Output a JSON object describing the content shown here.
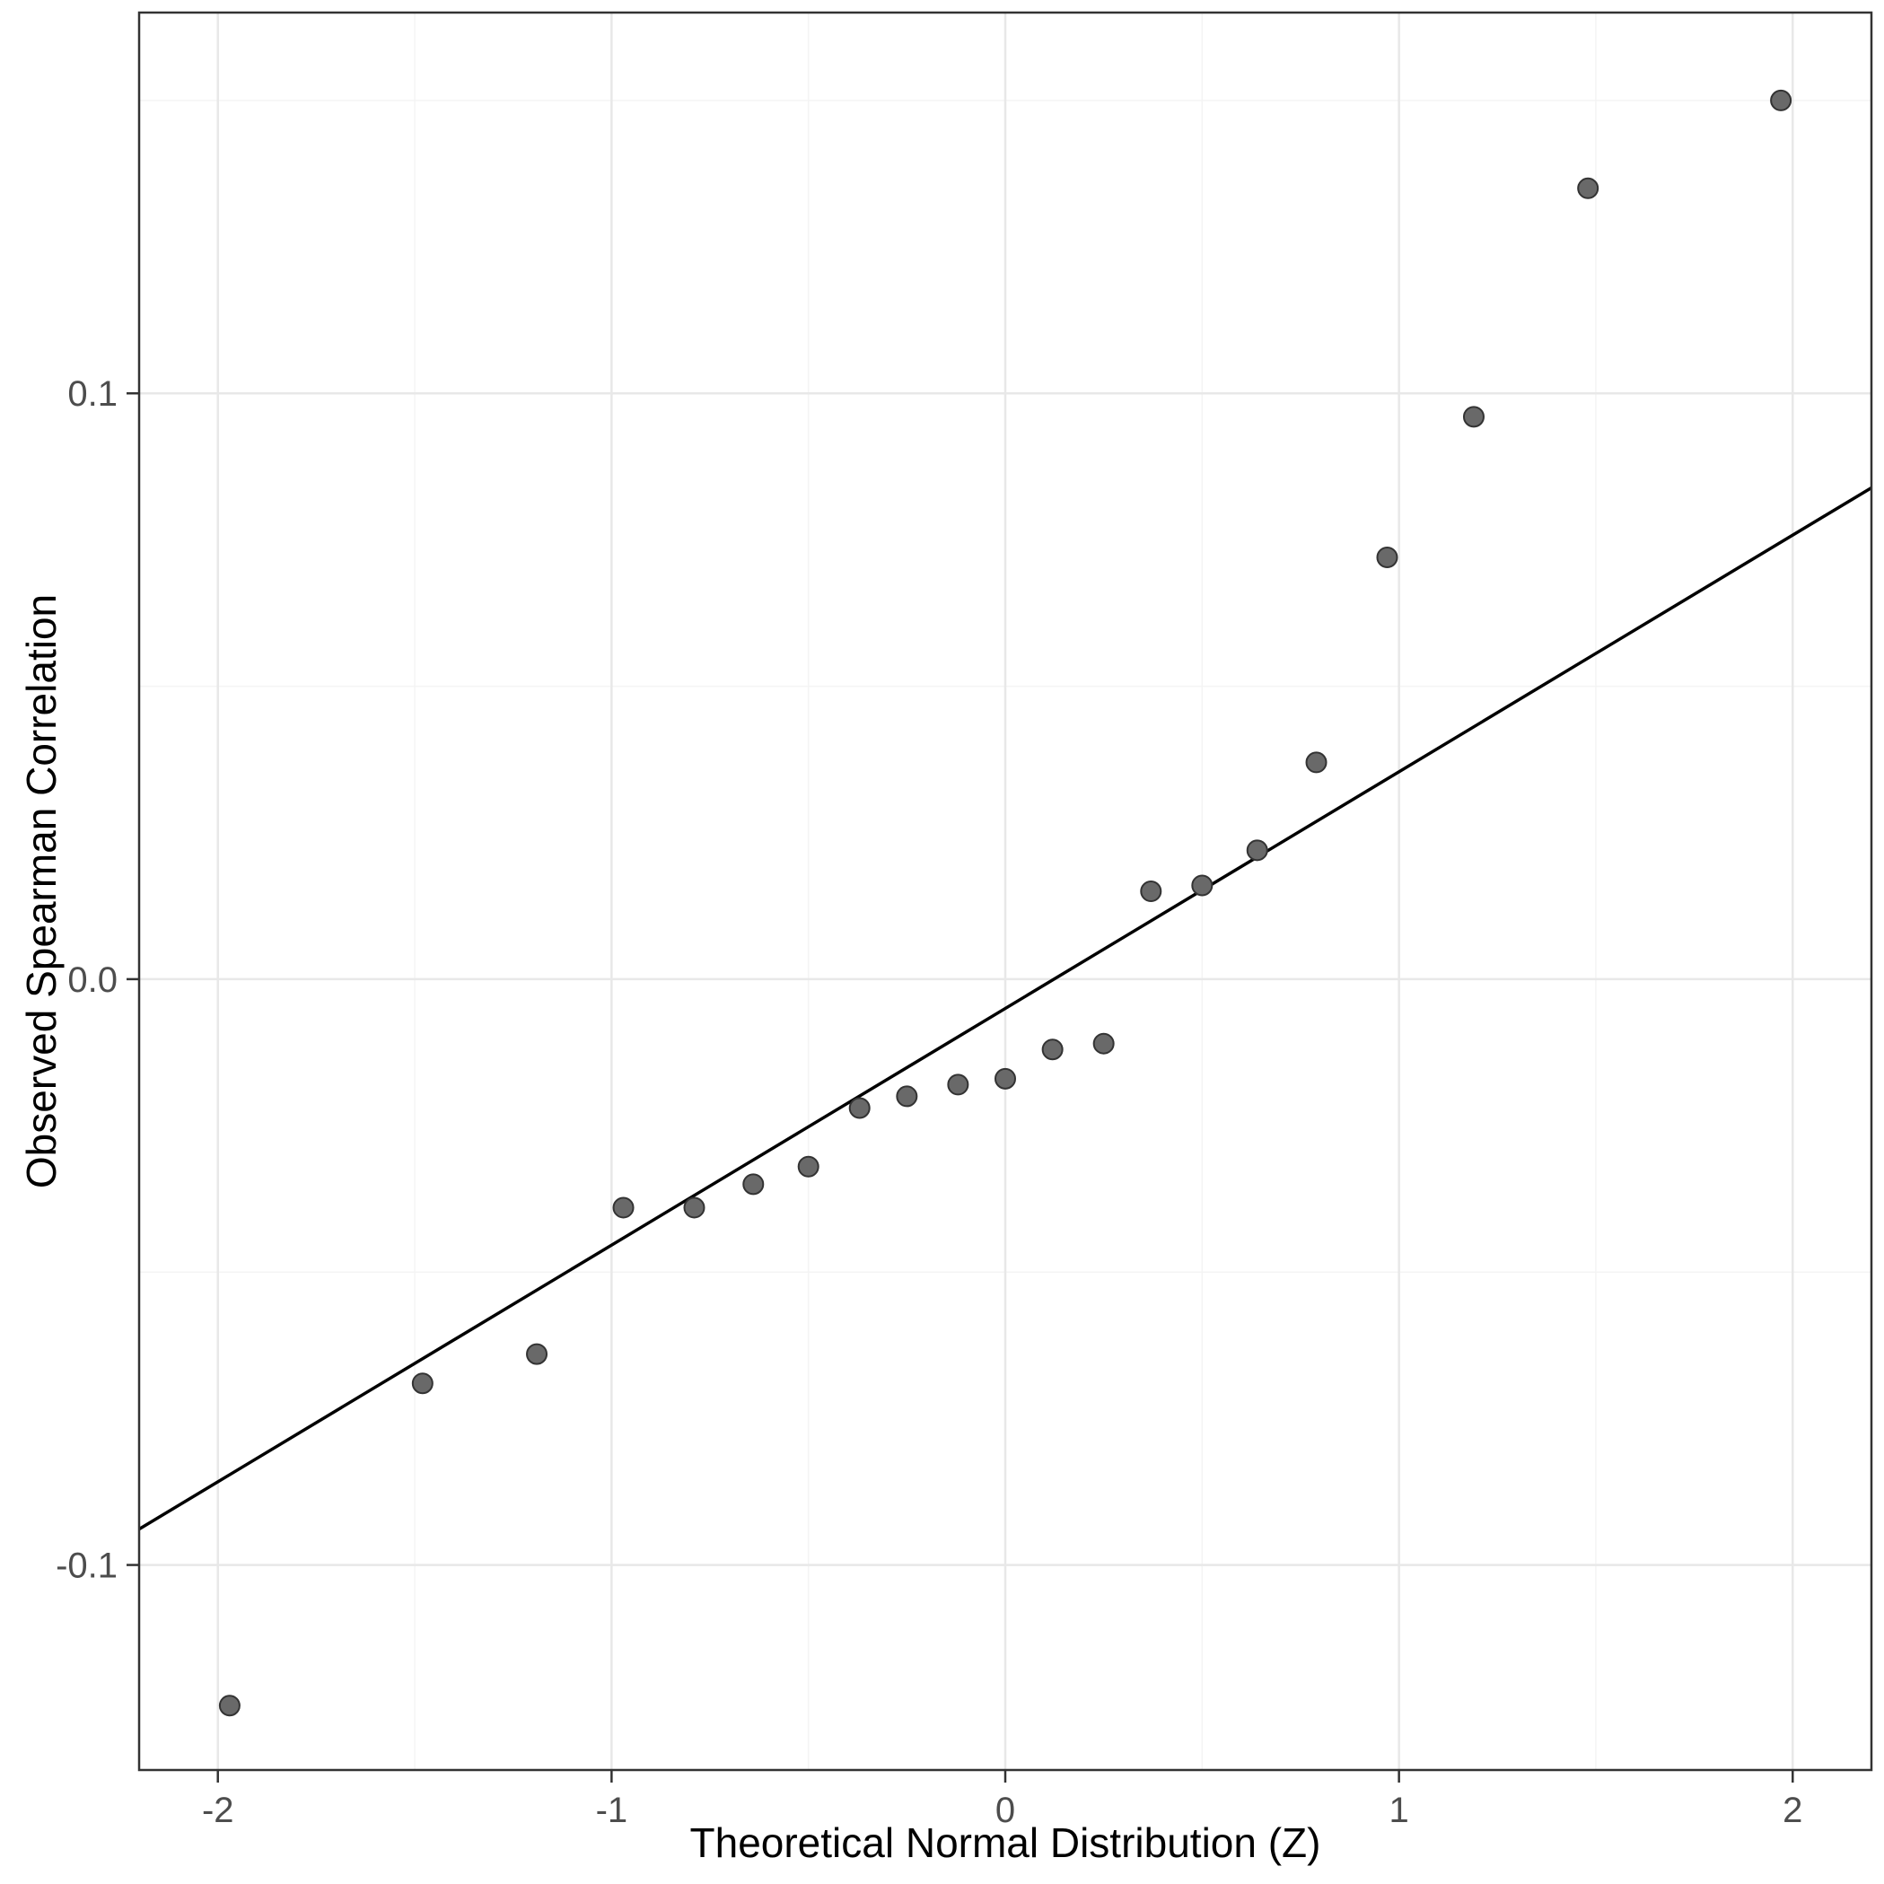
{
  "page": {
    "background": "#ffffff"
  },
  "chart_data": {
    "type": "scatter",
    "title": "",
    "xlabel": "Theoretical Normal Distribution (Z)",
    "ylabel": "Observed Spearman Correlation",
    "xlim": [
      -2.2,
      2.2
    ],
    "ylim": [
      -0.135,
      0.165
    ],
    "grid": true,
    "legend_position": "none",
    "x_ticks": {
      "values": [
        -2,
        -1,
        0,
        1,
        2
      ],
      "labels": [
        "-2",
        "-1",
        "0",
        "1",
        "2"
      ]
    },
    "y_ticks": {
      "values": [
        -0.1,
        0.0,
        0.1
      ],
      "labels": [
        "-0.1",
        "0.0",
        "0.1"
      ]
    },
    "x_minor_gridlines": [
      -1.5,
      -0.5,
      0.5,
      1.5
    ],
    "y_minor_gridlines": [
      -0.05,
      0.05,
      0.15
    ],
    "series": [
      {
        "name": "observed-vs-theoretical-quantiles",
        "type": "points",
        "x": [
          -1.97,
          -1.48,
          -1.19,
          -0.97,
          -0.79,
          -0.64,
          -0.5,
          -0.37,
          -0.25,
          -0.12,
          0.0,
          0.12,
          0.25,
          0.37,
          0.5,
          0.64,
          0.79,
          0.97,
          1.19,
          1.48,
          1.97
        ],
        "y": [
          -0.124,
          -0.069,
          -0.064,
          -0.039,
          -0.039,
          -0.035,
          -0.032,
          -0.022,
          -0.02,
          -0.018,
          -0.017,
          -0.012,
          -0.011,
          0.015,
          0.016,
          0.022,
          0.037,
          0.072,
          0.096,
          0.135,
          0.15
        ]
      }
    ],
    "reference_line": {
      "slope": 0.0404,
      "intercept": -0.005,
      "color": "#000000",
      "width": 3.5
    },
    "point_style": {
      "fill": "#696969",
      "stroke": "#333333",
      "radius": 11,
      "stroke_width": 2
    },
    "panel_style": {
      "background": "#ffffff",
      "border_color": "#333333",
      "border_width": 2.5,
      "grid_major_color": "#e8e8e8",
      "grid_minor_color": "#f4f4f4",
      "tick_color": "#333333",
      "tick_label_color": "#4d4d4d",
      "tick_label_size": 40
    }
  }
}
